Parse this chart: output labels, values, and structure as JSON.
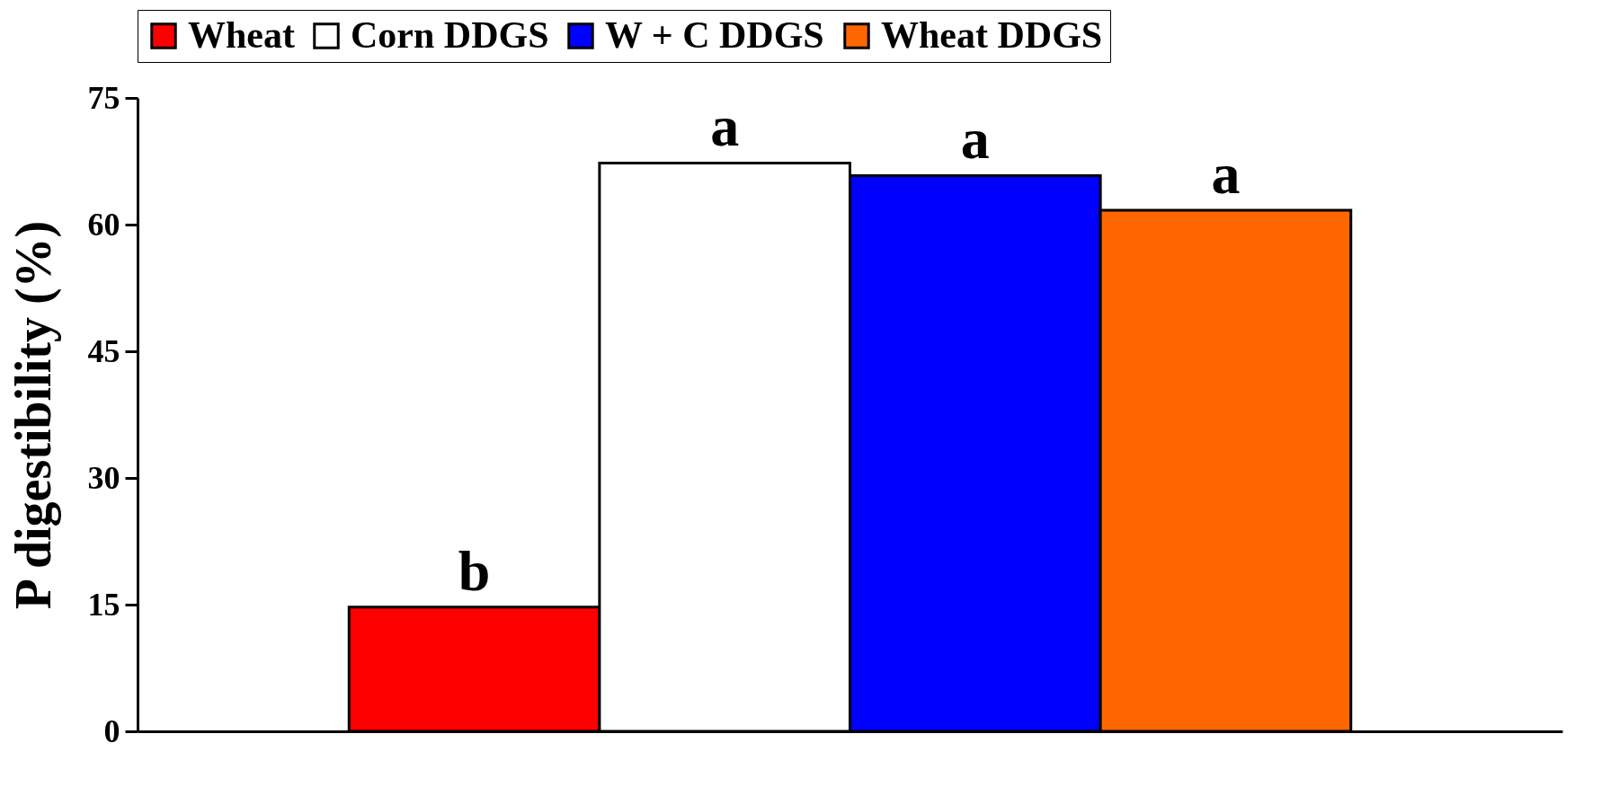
{
  "chart_data": {
    "type": "bar",
    "ylabel": "P digestibility (%)",
    "categories": [
      null
    ],
    "series": [
      {
        "name": "Wheat",
        "color": "#ff0000",
        "values": [
          14.7
        ]
      },
      {
        "name": "Corn DDGS",
        "color": "#ffffff",
        "values": [
          67.3
        ]
      },
      {
        "name": "W + C DDGS",
        "color": "#0000ff",
        "values": [
          65.8
        ]
      },
      {
        "name": "Wheat DDGS",
        "color": "#ff6600",
        "values": [
          61.7
        ]
      }
    ],
    "annotations": [
      "b",
      "a",
      "a",
      "a"
    ],
    "ylim": [
      0,
      75
    ],
    "yticks": [
      0,
      15,
      30,
      45,
      60,
      75
    ],
    "grid": false,
    "legend": "top"
  }
}
